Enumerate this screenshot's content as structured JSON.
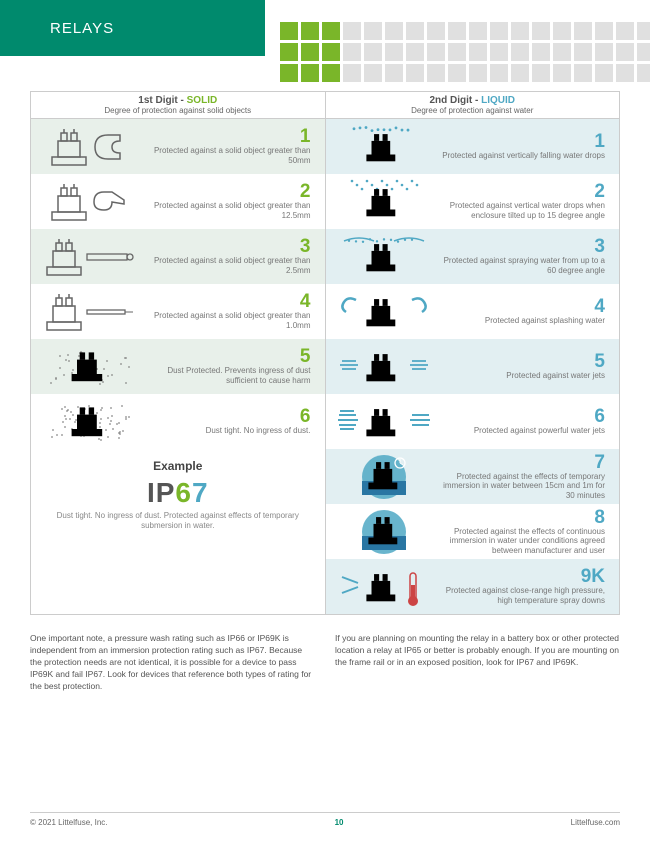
{
  "header": {
    "title": "RELAYS"
  },
  "squares": {
    "green_cols": 3,
    "grey_cols": 15,
    "rows": 3,
    "green_color": "#7ab629",
    "grey_color": "#e0e0e0"
  },
  "table": {
    "solid": {
      "title_prefix": "1st Digit - ",
      "title_word": "SOLID",
      "subtitle": "Degree of protection against solid objects",
      "accent": "#7ab629",
      "rows": [
        {
          "num": "1",
          "desc": "Protected against a solid object greater than 50mm",
          "alt": true
        },
        {
          "num": "2",
          "desc": "Protected against a solid object greater than 12.5mm",
          "alt": false
        },
        {
          "num": "3",
          "desc": "Protected against a solid object greater than 2.5mm",
          "alt": true
        },
        {
          "num": "4",
          "desc": "Protected against a solid object greater than 1.0mm",
          "alt": false
        },
        {
          "num": "5",
          "desc": "Dust Protected. Prevents ingress of dust sufficient to cause harm",
          "alt": true
        },
        {
          "num": "6",
          "desc": "Dust tight. No ingress of dust.",
          "alt": false
        }
      ]
    },
    "liquid": {
      "title_prefix": "2nd Digit - ",
      "title_word": "LIQUID",
      "subtitle": "Degree of protection against water",
      "accent": "#4fa8c4",
      "rows": [
        {
          "num": "1",
          "desc": "Protected against vertically falling water drops",
          "alt": true
        },
        {
          "num": "2",
          "desc": "Protected against vertical water drops when enclosure tilted up to 15 degree angle",
          "alt": false
        },
        {
          "num": "3",
          "desc": "Protected against spraying water from  up to a 60 degree angle",
          "alt": true
        },
        {
          "num": "4",
          "desc": "Protected against splashing water",
          "alt": false
        },
        {
          "num": "5",
          "desc": "Protected against water jets",
          "alt": true
        },
        {
          "num": "6",
          "desc": "Protected against powerful water jets",
          "alt": false
        },
        {
          "num": "7",
          "desc": "Protected against the effects of temporary immersion in water between 15cm and 1m for 30 minutes",
          "alt": true
        },
        {
          "num": "8",
          "desc": "Protected against the effects of continuous immersion in water under conditions agreed between manufacturer and user",
          "alt": false
        },
        {
          "num": "9K",
          "desc": "Protected against close-range high pressure, high temperature spray downs",
          "alt": true
        }
      ]
    }
  },
  "example": {
    "title": "Example",
    "ip": "IP",
    "digit1": "6",
    "digit2": "7",
    "desc": "Dust tight. No ingress of dust. Protected against effects of temporary submersion in water."
  },
  "notes": {
    "left": "One important note, a pressure wash rating such as IP66 or IP69K is independent from an immersion protection rating such as IP67. Because the protection needs are not identical, it is possible for a device to pass IP69K and fail IP67. Look for devices that reference both types of rating for the best protection.",
    "right": "If you are planning on mounting the relay in a battery box or other protected location a relay at IP65 or better is probably enough. If you are mounting on the frame rail or in an exposed position, look for IP67 and IP69K."
  },
  "footer": {
    "left": "© 2021 Littelfuse, Inc.",
    "page": "10",
    "right": "Littelfuse.com"
  }
}
